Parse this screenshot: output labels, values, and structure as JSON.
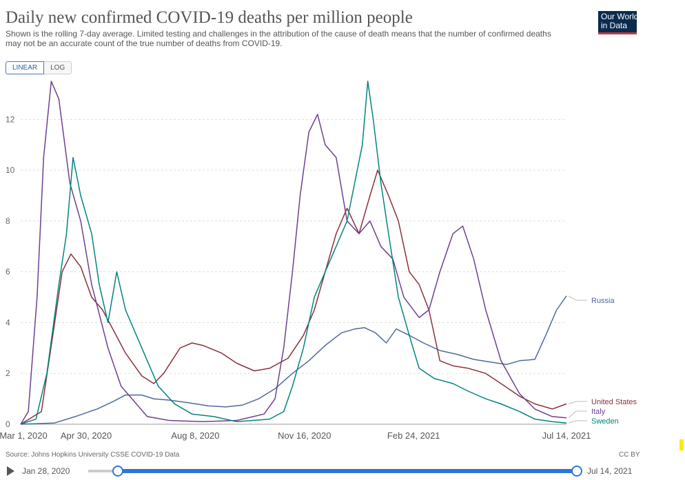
{
  "header": {
    "title": "Daily new confirmed COVID-19 deaths per million people",
    "subtitle": "Shown is the rolling 7-day average. Limited testing and challenges in the attribution of the cause of death means that the number of confirmed deaths may not be an accurate count of the true number of deaths from COVID-19.",
    "logo_line1": "Our World",
    "logo_line2": "in Data"
  },
  "scale_toggle": {
    "linear": "LINEAR",
    "log": "LOG",
    "selected": "LINEAR"
  },
  "footer": {
    "source": "Source: Johns Hopkins University CSSE COVID-19 Data",
    "license": "CC BY"
  },
  "timeline": {
    "start_label": "Jan 28, 2020",
    "end_label": "Jul 14, 2021"
  },
  "colors": {
    "russia": "#4c6a9c",
    "united_states": "#883039",
    "italy": "#6d3e91",
    "sweden": "#00847e",
    "accent": "#2e76d8"
  },
  "chart_data": {
    "type": "line",
    "x_unit": "day",
    "xlim": [
      "2020-03-01",
      "2021-07-14"
    ],
    "ylim": [
      0,
      13.5
    ],
    "yticks": [
      0,
      2,
      4,
      6,
      8,
      10,
      12
    ],
    "xticks": [
      {
        "date": "2020-03-01",
        "label": "Mar 1, 2020"
      },
      {
        "date": "2020-04-30",
        "label": "Apr 30, 2020"
      },
      {
        "date": "2020-08-08",
        "label": "Aug 8, 2020"
      },
      {
        "date": "2020-11-16",
        "label": "Nov 16, 2020"
      },
      {
        "date": "2021-02-24",
        "label": "Feb 24, 2021"
      },
      {
        "date": "2021-07-14",
        "label": "Jul 14, 2021"
      }
    ],
    "grid": true,
    "legend": "right",
    "series": [
      {
        "name": "Russia",
        "key": "russia",
        "points": [
          [
            "2020-03-01",
            0
          ],
          [
            "2020-04-01",
            0.05
          ],
          [
            "2020-04-20",
            0.3
          ],
          [
            "2020-05-10",
            0.6
          ],
          [
            "2020-05-25",
            0.9
          ],
          [
            "2020-06-05",
            1.15
          ],
          [
            "2020-06-20",
            1.15
          ],
          [
            "2020-07-01",
            1.0
          ],
          [
            "2020-07-15",
            0.95
          ],
          [
            "2020-08-01",
            0.85
          ],
          [
            "2020-08-20",
            0.72
          ],
          [
            "2020-09-05",
            0.68
          ],
          [
            "2020-09-20",
            0.75
          ],
          [
            "2020-10-05",
            1.0
          ],
          [
            "2020-10-20",
            1.4
          ],
          [
            "2020-11-05",
            2.0
          ],
          [
            "2020-11-20",
            2.5
          ],
          [
            "2020-12-05",
            3.1
          ],
          [
            "2020-12-20",
            3.6
          ],
          [
            "2021-01-01",
            3.75
          ],
          [
            "2021-01-10",
            3.8
          ],
          [
            "2021-01-20",
            3.6
          ],
          [
            "2021-01-30",
            3.2
          ],
          [
            "2021-02-08",
            3.75
          ],
          [
            "2021-02-20",
            3.5
          ],
          [
            "2021-03-05",
            3.2
          ],
          [
            "2021-03-20",
            2.9
          ],
          [
            "2021-04-05",
            2.75
          ],
          [
            "2021-04-20",
            2.55
          ],
          [
            "2021-05-05",
            2.45
          ],
          [
            "2021-05-20",
            2.35
          ],
          [
            "2021-06-01",
            2.5
          ],
          [
            "2021-06-15",
            2.55
          ],
          [
            "2021-06-25",
            3.5
          ],
          [
            "2021-07-05",
            4.5
          ],
          [
            "2021-07-14",
            5.05
          ]
        ]
      },
      {
        "name": "United States",
        "key": "united_states",
        "points": [
          [
            "2020-03-01",
            0
          ],
          [
            "2020-03-20",
            0.5
          ],
          [
            "2020-03-28",
            2.8
          ],
          [
            "2020-04-08",
            6.0
          ],
          [
            "2020-04-16",
            6.7
          ],
          [
            "2020-04-25",
            6.2
          ],
          [
            "2020-05-05",
            5.0
          ],
          [
            "2020-05-15",
            4.5
          ],
          [
            "2020-05-25",
            3.7
          ],
          [
            "2020-06-05",
            2.8
          ],
          [
            "2020-06-20",
            1.9
          ],
          [
            "2020-07-01",
            1.6
          ],
          [
            "2020-07-10",
            2.0
          ],
          [
            "2020-07-25",
            3.0
          ],
          [
            "2020-08-05",
            3.2
          ],
          [
            "2020-08-15",
            3.1
          ],
          [
            "2020-09-01",
            2.8
          ],
          [
            "2020-09-15",
            2.4
          ],
          [
            "2020-10-01",
            2.1
          ],
          [
            "2020-10-15",
            2.2
          ],
          [
            "2020-11-01",
            2.6
          ],
          [
            "2020-11-15",
            3.5
          ],
          [
            "2020-11-25",
            4.5
          ],
          [
            "2020-12-05",
            6.0
          ],
          [
            "2020-12-15",
            7.5
          ],
          [
            "2020-12-25",
            8.5
          ],
          [
            "2021-01-05",
            7.5
          ],
          [
            "2021-01-15",
            9.0
          ],
          [
            "2021-01-22",
            10.0
          ],
          [
            "2021-02-01",
            9.0
          ],
          [
            "2021-02-10",
            8.0
          ],
          [
            "2021-02-20",
            6.0
          ],
          [
            "2021-03-01",
            5.5
          ],
          [
            "2021-03-10",
            4.5
          ],
          [
            "2021-03-20",
            2.5
          ],
          [
            "2021-04-01",
            2.3
          ],
          [
            "2021-04-15",
            2.2
          ],
          [
            "2021-05-01",
            2.0
          ],
          [
            "2021-05-15",
            1.6
          ],
          [
            "2021-06-01",
            1.1
          ],
          [
            "2021-06-15",
            0.8
          ],
          [
            "2021-07-01",
            0.6
          ],
          [
            "2021-07-14",
            0.8
          ]
        ]
      },
      {
        "name": "Italy",
        "key": "italy",
        "points": [
          [
            "2020-03-01",
            0
          ],
          [
            "2020-03-08",
            0.5
          ],
          [
            "2020-03-16",
            5.0
          ],
          [
            "2020-03-22",
            10.5
          ],
          [
            "2020-03-29",
            13.5
          ],
          [
            "2020-04-05",
            12.8
          ],
          [
            "2020-04-15",
            9.5
          ],
          [
            "2020-04-25",
            8.0
          ],
          [
            "2020-05-05",
            5.5
          ],
          [
            "2020-05-20",
            3.0
          ],
          [
            "2020-06-01",
            1.5
          ],
          [
            "2020-06-15",
            0.8
          ],
          [
            "2020-06-25",
            0.3
          ],
          [
            "2020-07-15",
            0.15
          ],
          [
            "2020-08-15",
            0.1
          ],
          [
            "2020-09-15",
            0.15
          ],
          [
            "2020-10-10",
            0.4
          ],
          [
            "2020-10-20",
            1.0
          ],
          [
            "2020-10-28",
            3.0
          ],
          [
            "2020-11-05",
            6.0
          ],
          [
            "2020-11-12",
            9.0
          ],
          [
            "2020-11-20",
            11.5
          ],
          [
            "2020-11-28",
            12.2
          ],
          [
            "2020-12-05",
            11.0
          ],
          [
            "2020-12-15",
            10.5
          ],
          [
            "2020-12-25",
            8.0
          ],
          [
            "2021-01-05",
            7.5
          ],
          [
            "2021-01-15",
            8.0
          ],
          [
            "2021-01-25",
            7.0
          ],
          [
            "2021-02-05",
            6.5
          ],
          [
            "2021-02-15",
            5.0
          ],
          [
            "2021-03-01",
            4.2
          ],
          [
            "2021-03-10",
            4.5
          ],
          [
            "2021-03-20",
            6.0
          ],
          [
            "2021-04-01",
            7.5
          ],
          [
            "2021-04-10",
            7.8
          ],
          [
            "2021-04-20",
            6.5
          ],
          [
            "2021-05-01",
            4.5
          ],
          [
            "2021-05-15",
            2.5
          ],
          [
            "2021-06-01",
            1.2
          ],
          [
            "2021-06-15",
            0.6
          ],
          [
            "2021-07-01",
            0.3
          ],
          [
            "2021-07-14",
            0.25
          ]
        ]
      },
      {
        "name": "Sweden",
        "key": "sweden",
        "points": [
          [
            "2020-03-01",
            0
          ],
          [
            "2020-03-15",
            0.2
          ],
          [
            "2020-03-25",
            2.0
          ],
          [
            "2020-04-05",
            5.5
          ],
          [
            "2020-04-12",
            7.5
          ],
          [
            "2020-04-18",
            10.5
          ],
          [
            "2020-04-25",
            9.0
          ],
          [
            "2020-05-05",
            7.5
          ],
          [
            "2020-05-12",
            5.5
          ],
          [
            "2020-05-20",
            4.0
          ],
          [
            "2020-05-28",
            6.0
          ],
          [
            "2020-06-05",
            4.5
          ],
          [
            "2020-06-15",
            3.5
          ],
          [
            "2020-06-25",
            2.5
          ],
          [
            "2020-07-05",
            1.5
          ],
          [
            "2020-07-20",
            0.8
          ],
          [
            "2020-08-05",
            0.4
          ],
          [
            "2020-08-25",
            0.3
          ],
          [
            "2020-09-15",
            0.1
          ],
          [
            "2020-10-15",
            0.2
          ],
          [
            "2020-10-28",
            0.5
          ],
          [
            "2020-11-05",
            1.5
          ],
          [
            "2020-11-15",
            3.0
          ],
          [
            "2020-11-25",
            5.0
          ],
          [
            "2020-12-05",
            6.0
          ],
          [
            "2020-12-15",
            7.0
          ],
          [
            "2020-12-25",
            8.0
          ],
          [
            "2021-01-01",
            9.5
          ],
          [
            "2021-01-08",
            11.0
          ],
          [
            "2021-01-13",
            13.5
          ],
          [
            "2021-01-18",
            12.0
          ],
          [
            "2021-01-25",
            9.5
          ],
          [
            "2021-02-01",
            7.5
          ],
          [
            "2021-02-10",
            5.0
          ],
          [
            "2021-02-20",
            3.5
          ],
          [
            "2021-03-01",
            2.2
          ],
          [
            "2021-03-15",
            1.8
          ],
          [
            "2021-04-01",
            1.6
          ],
          [
            "2021-04-15",
            1.3
          ],
          [
            "2021-05-01",
            1.0
          ],
          [
            "2021-05-15",
            0.8
          ],
          [
            "2021-06-01",
            0.5
          ],
          [
            "2021-06-15",
            0.2
          ],
          [
            "2021-07-01",
            0.1
          ],
          [
            "2021-07-14",
            0.05
          ]
        ]
      }
    ]
  }
}
